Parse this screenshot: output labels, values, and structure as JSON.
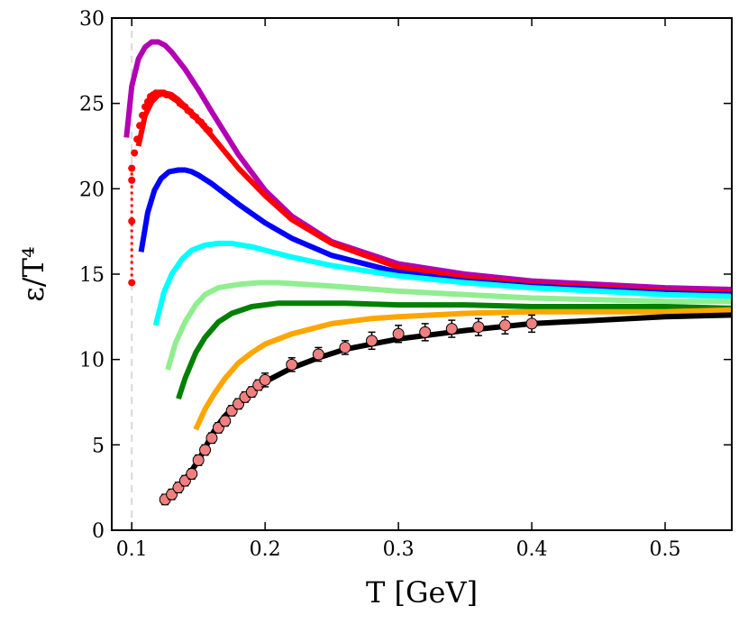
{
  "chart_data": {
    "type": "line",
    "xlabel": "T [GeV]",
    "ylabel": "ε/T⁴",
    "xlim": [
      0.085,
      0.55
    ],
    "ylim": [
      0,
      30
    ],
    "xticks": [
      {
        "value": 0.1,
        "label": "0.1"
      },
      {
        "value": 0.2,
        "label": "0.2"
      },
      {
        "value": 0.3,
        "label": "0.3"
      },
      {
        "value": 0.4,
        "label": "0.4"
      },
      {
        "value": 0.5,
        "label": "0.5"
      }
    ],
    "yticks": [
      {
        "value": 0,
        "label": "0"
      },
      {
        "value": 5,
        "label": "5"
      },
      {
        "value": 10,
        "label": "10"
      },
      {
        "value": 15,
        "label": "15"
      },
      {
        "value": 20,
        "label": "20"
      },
      {
        "value": 25,
        "label": "25"
      },
      {
        "value": 30,
        "label": "30"
      }
    ],
    "grid": false,
    "reference_line": {
      "x": 0.1,
      "style": "dashed",
      "color": "#d9d9d9"
    },
    "series": [
      {
        "color": "#b300b3",
        "x": [
          0.096,
          0.1,
          0.105,
          0.11,
          0.115,
          0.12,
          0.125,
          0.13,
          0.14,
          0.15,
          0.16,
          0.18,
          0.2,
          0.22,
          0.25,
          0.3,
          0.35,
          0.4,
          0.45,
          0.5,
          0.55
        ],
        "y": [
          23.0,
          26.0,
          27.6,
          28.3,
          28.6,
          28.6,
          28.4,
          28.0,
          27.0,
          25.8,
          24.5,
          22.0,
          19.9,
          18.4,
          16.9,
          15.6,
          15.0,
          14.6,
          14.4,
          14.2,
          14.1
        ]
      },
      {
        "color": "#ff0000",
        "x": [
          0.105,
          0.11,
          0.115,
          0.12,
          0.125,
          0.13,
          0.135,
          0.14,
          0.15,
          0.16,
          0.18,
          0.2,
          0.22,
          0.25,
          0.3,
          0.35,
          0.4,
          0.45,
          0.5,
          0.55
        ],
        "y": [
          22.5,
          24.3,
          25.1,
          25.5,
          25.6,
          25.5,
          25.2,
          24.8,
          24.0,
          23.1,
          21.2,
          19.6,
          18.2,
          16.8,
          15.4,
          14.8,
          14.4,
          14.2,
          14.0,
          13.9
        ]
      },
      {
        "color": "#0000ff",
        "x": [
          0.107,
          0.112,
          0.117,
          0.122,
          0.128,
          0.135,
          0.14,
          0.145,
          0.15,
          0.16,
          0.18,
          0.2,
          0.22,
          0.25,
          0.3,
          0.35,
          0.4,
          0.45,
          0.5,
          0.55
        ],
        "y": [
          16.3,
          18.6,
          19.9,
          20.6,
          21.0,
          21.1,
          21.1,
          21.0,
          20.8,
          20.3,
          19.1,
          18.0,
          17.1,
          16.1,
          15.1,
          14.6,
          14.3,
          14.1,
          13.9,
          13.8
        ]
      },
      {
        "color": "#00ffff",
        "x": [
          0.118,
          0.124,
          0.13,
          0.138,
          0.145,
          0.155,
          0.165,
          0.175,
          0.19,
          0.2,
          0.22,
          0.25,
          0.3,
          0.35,
          0.4,
          0.45,
          0.5,
          0.55
        ],
        "y": [
          12.0,
          13.9,
          15.0,
          15.9,
          16.4,
          16.7,
          16.8,
          16.8,
          16.6,
          16.4,
          16.0,
          15.5,
          14.9,
          14.5,
          14.2,
          14.0,
          13.8,
          13.7
        ]
      },
      {
        "color": "#90ee90",
        "x": [
          0.127,
          0.133,
          0.14,
          0.148,
          0.155,
          0.165,
          0.18,
          0.195,
          0.21,
          0.23,
          0.25,
          0.3,
          0.35,
          0.4,
          0.45,
          0.5,
          0.55
        ],
        "y": [
          9.4,
          11.0,
          12.2,
          13.2,
          13.8,
          14.2,
          14.4,
          14.5,
          14.5,
          14.4,
          14.3,
          14.0,
          13.8,
          13.6,
          13.5,
          13.4,
          13.4
        ]
      },
      {
        "color": "#008000",
        "x": [
          0.135,
          0.14,
          0.148,
          0.155,
          0.165,
          0.175,
          0.19,
          0.21,
          0.23,
          0.26,
          0.3,
          0.35,
          0.4,
          0.45,
          0.5,
          0.55
        ],
        "y": [
          7.7,
          8.9,
          10.4,
          11.3,
          12.2,
          12.7,
          13.1,
          13.3,
          13.3,
          13.3,
          13.2,
          13.2,
          13.1,
          13.1,
          13.1,
          13.0
        ]
      },
      {
        "color": "#ffa500",
        "x": [
          0.148,
          0.155,
          0.162,
          0.17,
          0.18,
          0.19,
          0.2,
          0.22,
          0.25,
          0.28,
          0.3,
          0.35,
          0.4,
          0.45,
          0.5,
          0.55
        ],
        "y": [
          5.9,
          7.1,
          8.0,
          8.9,
          9.8,
          10.4,
          10.9,
          11.5,
          12.1,
          12.4,
          12.5,
          12.7,
          12.8,
          12.8,
          12.8,
          12.9
        ]
      },
      {
        "color": "#000000",
        "x": [
          0.125,
          0.13,
          0.135,
          0.14,
          0.145,
          0.15,
          0.155,
          0.16,
          0.165,
          0.17,
          0.18,
          0.19,
          0.2,
          0.21,
          0.22,
          0.24,
          0.26,
          0.28,
          0.3,
          0.35,
          0.4,
          0.45,
          0.5,
          0.55
        ],
        "y": [
          1.9,
          2.2,
          2.6,
          3.0,
          3.5,
          4.1,
          4.8,
          5.6,
          6.2,
          6.7,
          7.5,
          8.1,
          8.7,
          9.1,
          9.5,
          10.1,
          10.6,
          10.9,
          11.2,
          11.7,
          12.1,
          12.3,
          12.5,
          12.6
        ]
      }
    ],
    "red_markers": {
      "color": "#ff0000",
      "x": [
        0.1,
        0.1,
        0.1,
        0.1,
        0.102,
        0.104,
        0.106,
        0.108,
        0.11,
        0.112,
        0.114,
        0.116,
        0.118,
        0.12,
        0.122,
        0.124,
        0.126,
        0.128,
        0.13,
        0.132,
        0.134,
        0.136,
        0.138,
        0.14,
        0.142,
        0.144,
        0.146,
        0.148,
        0.15,
        0.152,
        0.154,
        0.156,
        0.158
      ],
      "y": [
        14.5,
        18.1,
        20.5,
        21.2,
        22.1,
        22.9,
        23.7,
        24.3,
        24.8,
        25.1,
        25.4,
        25.5,
        25.6,
        25.6,
        25.6,
        25.6,
        25.5,
        25.5,
        25.4,
        25.3,
        25.2,
        25.0,
        24.9,
        24.8,
        24.6,
        24.5,
        24.3,
        24.2,
        24.0,
        23.9,
        23.7,
        23.5,
        23.4
      ]
    },
    "data_points": {
      "x": [
        0.125,
        0.13,
        0.135,
        0.14,
        0.145,
        0.15,
        0.155,
        0.16,
        0.165,
        0.17,
        0.175,
        0.18,
        0.185,
        0.19,
        0.195,
        0.2,
        0.22,
        0.24,
        0.26,
        0.28,
        0.3,
        0.32,
        0.34,
        0.36,
        0.38,
        0.4
      ],
      "y": [
        1.8,
        2.1,
        2.5,
        2.9,
        3.3,
        4.1,
        4.7,
        5.4,
        6.0,
        6.4,
        7.0,
        7.4,
        7.8,
        8.1,
        8.5,
        8.8,
        9.7,
        10.3,
        10.7,
        11.1,
        11.5,
        11.6,
        11.8,
        11.9,
        12.0,
        12.1
      ],
      "err": [
        0.3,
        0.3,
        0.3,
        0.3,
        0.3,
        0.3,
        0.3,
        0.3,
        0.3,
        0.3,
        0.3,
        0.3,
        0.3,
        0.3,
        0.3,
        0.4,
        0.4,
        0.4,
        0.4,
        0.5,
        0.5,
        0.5,
        0.5,
        0.5,
        0.5,
        0.5
      ],
      "fill": "#f08080"
    }
  }
}
